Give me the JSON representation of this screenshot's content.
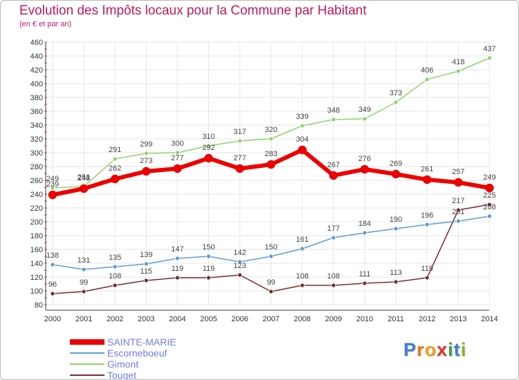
{
  "header": {
    "title": "Evolution des Impôts locaux pour la Commune par Habitant",
    "subtitle": "(en € et par an)"
  },
  "logo": {
    "text": "Proxiti",
    "letters": [
      {
        "ch": "P",
        "color": "#3f7fd0"
      },
      {
        "ch": "r",
        "color": "#e07b1f"
      },
      {
        "ch": "o",
        "color": "#f0a21a"
      },
      {
        "ch": "x",
        "color": "#e0332a"
      },
      {
        "ch": "i",
        "color": "#3d9f45"
      },
      {
        "ch": "t",
        "color": "#3f7fd0"
      },
      {
        "ch": "i",
        "color": "#86b827"
      }
    ]
  },
  "chart_data": {
    "type": "line",
    "x": [
      "2000",
      "2001",
      "2002",
      "2003",
      "2004",
      "2005",
      "2006",
      "2007",
      "2008",
      "2009",
      "2010",
      "2011",
      "2012",
      "2013",
      "2014"
    ],
    "ylim": [
      80,
      460
    ],
    "yticks": [
      80,
      100,
      120,
      140,
      160,
      180,
      200,
      220,
      240,
      260,
      280,
      300,
      320,
      340,
      360,
      380,
      400,
      420,
      440,
      460
    ],
    "grid": true,
    "legend_position": "bottom-left",
    "series": [
      {
        "name": "SAINTE-MARIE",
        "color": "#ee0000",
        "values": [
          239,
          248,
          262,
          273,
          277,
          292,
          277,
          283,
          304,
          267,
          276,
          269,
          261,
          257,
          249
        ],
        "labels": [
          "239",
          "248",
          "262",
          "273",
          "277",
          "292",
          "277",
          "283",
          "304",
          "267",
          "276",
          "269",
          "261",
          "257",
          "249"
        ]
      },
      {
        "name": "Escorneboeuf",
        "color": "#5b9bd5",
        "values": [
          138,
          131,
          135,
          139,
          147,
          150,
          142,
          150,
          161,
          177,
          184,
          190,
          196,
          201,
          208
        ],
        "labels": [
          "138",
          "131",
          "135",
          "139",
          "147",
          "150",
          "142",
          "150",
          "161",
          "177",
          "184",
          "190",
          "196",
          "201",
          "208"
        ]
      },
      {
        "name": "Gimont",
        "color": "#8ed46a",
        "values": [
          249,
          251,
          291,
          299,
          300,
          310,
          317,
          320,
          339,
          348,
          349,
          373,
          406,
          418,
          437
        ],
        "labels": [
          "249",
          "251",
          "291",
          "299",
          "300",
          "310",
          "317",
          "320",
          "339",
          "348",
          "349",
          "373",
          "406",
          "418",
          "437"
        ]
      },
      {
        "name": "Touget",
        "color": "#7a2a2a",
        "values": [
          96,
          99,
          108,
          115,
          119,
          119,
          123,
          99,
          108,
          108,
          111,
          113,
          119,
          217,
          225
        ],
        "labels": [
          "96",
          "99",
          "108",
          "115",
          "119",
          "119",
          "123",
          "99",
          "108",
          "108",
          "111",
          "113",
          "119",
          "217",
          "225"
        ]
      }
    ]
  }
}
